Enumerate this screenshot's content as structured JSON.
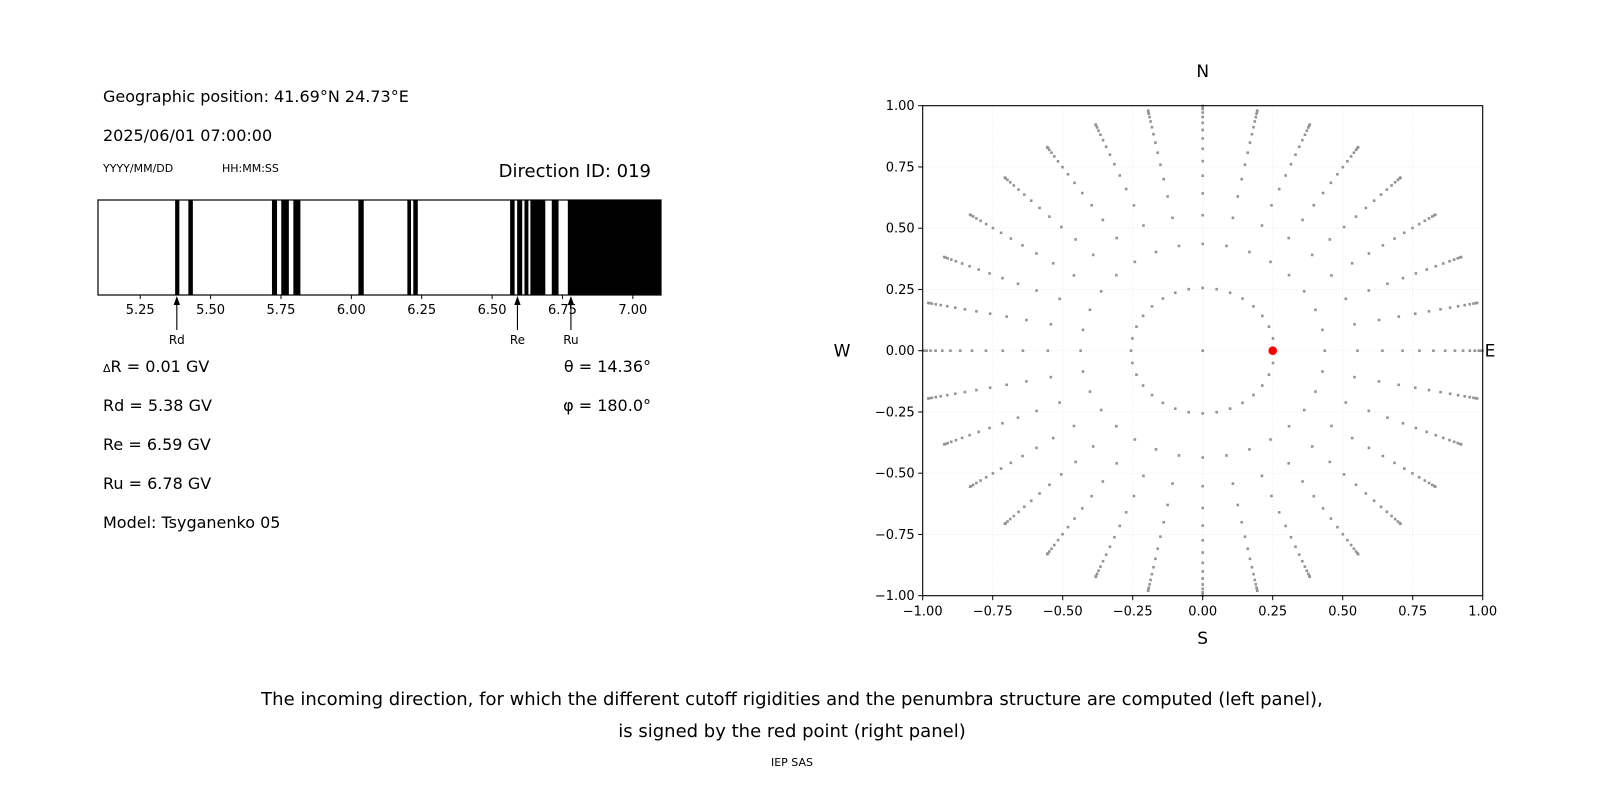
{
  "header": {
    "geo_position": "Geographic position: 41.69°N 24.73°E",
    "datetime": "2025/06/01 07:00:00",
    "date_format_hint": "YYYY/MM/DD",
    "time_format_hint": "HH:MM:SS",
    "direction_id": "Direction ID: 019"
  },
  "values": {
    "delta_symbol": "Δ",
    "delta_rest": "R = 0.01 GV",
    "rd": "Rd = 5.38 GV",
    "re": "Re = 6.59 GV",
    "ru": "Ru = 6.78 GV",
    "model": "Model: Tsyganenko 05",
    "theta": "θ = 14.36°",
    "phi": "φ = 180.0°"
  },
  "caption": {
    "line1": "The incoming direction, for which the different cutoff rigidities and the penumbra structure are computed (left panel),",
    "line2": "is signed by the red point (right panel)",
    "credit": "IEP SAS"
  },
  "chart_data": [
    {
      "type": "bar",
      "subtype": "penumbra-barcode",
      "xlim": [
        5.1,
        7.1
      ],
      "xticks": [
        5.25,
        5.5,
        5.75,
        6.0,
        6.25,
        6.5,
        6.75,
        7.0
      ],
      "xtick_labels": [
        "5.25",
        "5.50",
        "5.75",
        "6.00",
        "6.25",
        "6.50",
        "6.75",
        "7.00"
      ],
      "bar_color": "#000000",
      "forbidden_bands_gv": [
        [
          5.374,
          5.389
        ],
        [
          5.421,
          5.437
        ],
        [
          5.718,
          5.736
        ],
        [
          5.751,
          5.778
        ],
        [
          5.794,
          5.819
        ],
        [
          6.025,
          6.044
        ],
        [
          6.199,
          6.212
        ],
        [
          6.22,
          6.236
        ],
        [
          6.564,
          6.58
        ],
        [
          6.589,
          6.607
        ],
        [
          6.615,
          6.629
        ],
        [
          6.636,
          6.689
        ],
        [
          6.712,
          6.736
        ],
        [
          6.769,
          7.1
        ]
      ],
      "markers": [
        {
          "label": "Rd",
          "value_gv": 5.38
        },
        {
          "label": "Re",
          "value_gv": 6.59
        },
        {
          "label": "Ru",
          "value_gv": 6.78
        }
      ]
    },
    {
      "type": "scatter",
      "subtype": "incoming-direction-grid",
      "compass": {
        "top": "N",
        "bottom": "S",
        "left": "W",
        "right": "E"
      },
      "xlim": [
        -1,
        1
      ],
      "ylim": [
        -1,
        1
      ],
      "xticks": [
        -1,
        -0.75,
        -0.5,
        -0.25,
        0,
        0.25,
        0.5,
        0.75,
        1
      ],
      "xtick_labels": [
        "−1.00",
        "−0.75",
        "−0.50",
        "−0.25",
        "0.00",
        "0.25",
        "0.50",
        "0.75",
        "1.00"
      ],
      "yticks": [
        1,
        0.75,
        0.5,
        0.25,
        0,
        -0.25,
        -0.5,
        -0.75,
        -1
      ],
      "ytick_labels": [
        "1.00",
        "0.75",
        "0.50",
        "0.25",
        "0.00",
        "−0.25",
        "−0.50",
        "−0.75",
        "−1.00"
      ],
      "grid": true,
      "azimuth_count": 32,
      "ring_radii": [
        0.256,
        0.436,
        0.553,
        0.642,
        0.714,
        0.774,
        0.824,
        0.866,
        0.901,
        0.93,
        0.954,
        0.972,
        0.986,
        0.995,
        0.999
      ],
      "center_dot": true,
      "dot_color": "#949494",
      "red_point": {
        "x": 0.25,
        "y": 0.0,
        "color": "#ff0000"
      }
    }
  ]
}
